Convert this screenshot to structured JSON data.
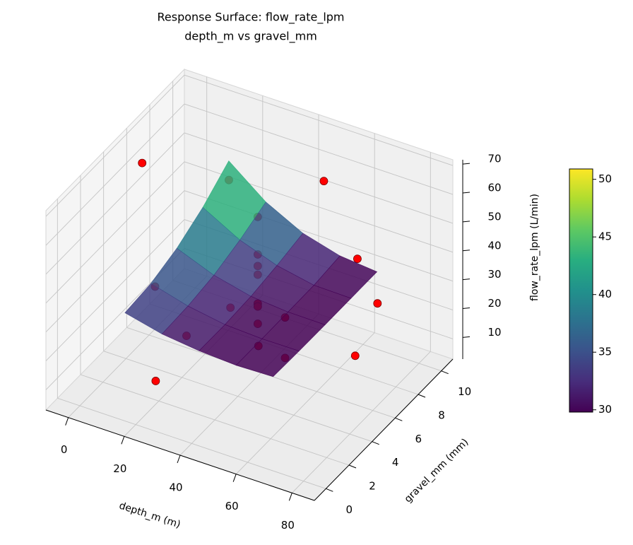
{
  "chart_data": {
    "type": "surface3d",
    "title": "Response Surface: flow_rate_lpm",
    "subtitle": "depth_m vs gravel_mm",
    "xlabel": "depth_m (m)",
    "ylabel": "gravel_mm (mm)",
    "zlabel": "flow_rate_lpm (L/min)",
    "xlim": [
      -8,
      88
    ],
    "ylim": [
      -1,
      11
    ],
    "zlim": [
      3,
      72
    ],
    "xticks": [
      0,
      20,
      40,
      60,
      80
    ],
    "yticks": [
      0,
      2,
      4,
      6,
      8,
      10
    ],
    "zticks": [
      10,
      20,
      30,
      40,
      50,
      60,
      70
    ],
    "grid": true,
    "surface": {
      "x": [
        12,
        25.25,
        38.5,
        51.75,
        65
      ],
      "y": [
        1,
        3.25,
        5.5,
        7.75,
        10
      ],
      "z": [
        [
          35,
          32,
          30.5,
          29.8,
          30.2
        ],
        [
          36,
          32.5,
          30.4,
          29.8,
          29.9
        ],
        [
          39,
          34,
          31,
          29.9,
          29.8
        ],
        [
          44,
          37,
          32.5,
          30,
          29.8
        ],
        [
          50.9,
          41,
          34.5,
          31,
          29.8
        ]
      ],
      "colormap": "viridis",
      "clim": [
        29.8,
        50.9
      ],
      "cticks": [
        30,
        35,
        40,
        45,
        50
      ]
    },
    "scatter": {
      "x": [
        0,
        24,
        46,
        58,
        66,
        70,
        54,
        49,
        27,
        23,
        17,
        39,
        54,
        43,
        43,
        43,
        43,
        43,
        43,
        43
      ],
      "y": [
        5.4,
        7.1,
        10,
        10,
        9.8,
        6.9,
        4.7,
        3.6,
        2.7,
        1,
        2.4,
        3.6,
        4.7,
        5,
        5,
        5,
        5,
        5,
        5,
        5
      ],
      "z": [
        65,
        60,
        55,
        32,
        20,
        15,
        18,
        25,
        25,
        15,
        40,
        35,
        32,
        62,
        49,
        45,
        42,
        32,
        31,
        25
      ],
      "color": "#ff0000",
      "edgecolor": "#7a0000"
    }
  }
}
